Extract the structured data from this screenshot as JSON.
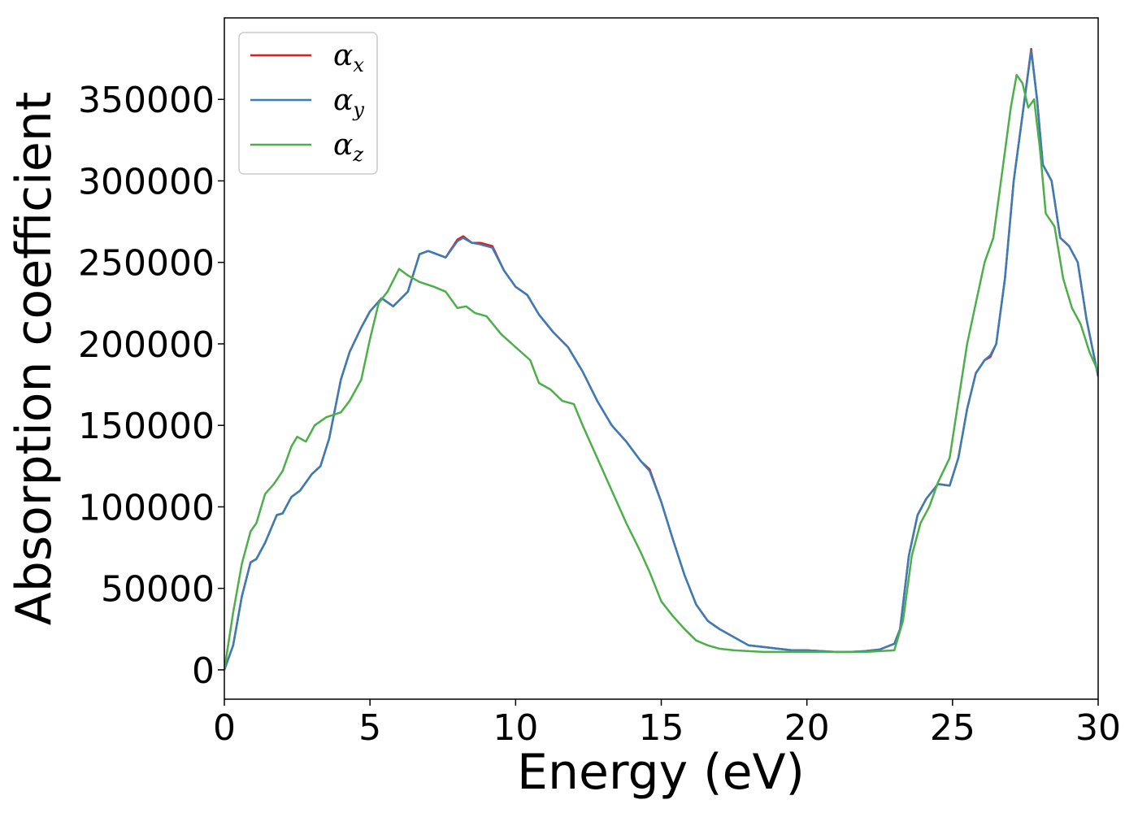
{
  "chart_data": {
    "type": "line",
    "xlabel": "Energy (eV)",
    "ylabel": "Absorption coefficient",
    "xlim": [
      0,
      30
    ],
    "ylim": [
      -18000,
      400000
    ],
    "x_ticks": [
      0,
      5,
      10,
      15,
      20,
      25,
      30
    ],
    "y_ticks": [
      0,
      50000,
      100000,
      150000,
      200000,
      250000,
      300000,
      350000
    ],
    "grid": false,
    "legend_position": "top-left",
    "series": [
      {
        "name": "α_x",
        "legend_symbol": "α",
        "legend_sub": "x",
        "color": "#e41a1c",
        "x": [
          0,
          0.3,
          0.6,
          0.9,
          1.1,
          1.4,
          1.8,
          2.0,
          2.3,
          2.6,
          3.0,
          3.3,
          3.6,
          4.0,
          4.3,
          4.7,
          5.0,
          5.4,
          5.8,
          6.3,
          6.7,
          7.0,
          7.3,
          7.6,
          8.0,
          8.2,
          8.5,
          8.8,
          9.2,
          9.6,
          10.0,
          10.4,
          10.8,
          11.3,
          11.8,
          12.3,
          12.8,
          13.3,
          13.8,
          14.3,
          14.6,
          15.0,
          15.4,
          15.8,
          16.2,
          16.6,
          17.0,
          17.5,
          18.0,
          18.5,
          19.0,
          19.5,
          20.0,
          20.5,
          21.0,
          21.5,
          22.0,
          22.5,
          23.0,
          23.2,
          23.5,
          23.8,
          24.1,
          24.5,
          24.9,
          25.2,
          25.5,
          25.8,
          26.1,
          26.3,
          26.5,
          26.8,
          27.1,
          27.4,
          27.7,
          27.9,
          28.1,
          28.4,
          28.7,
          29.0,
          29.3,
          29.6,
          30.0
        ],
        "values": [
          0,
          15000,
          45000,
          66000,
          68000,
          78000,
          95000,
          96000,
          106000,
          110000,
          120000,
          125000,
          142000,
          178000,
          195000,
          210000,
          220000,
          228000,
          223000,
          232000,
          255000,
          257000,
          255000,
          253000,
          264000,
          266000,
          262000,
          262000,
          260000,
          245000,
          235000,
          230000,
          218000,
          207000,
          198000,
          183000,
          165000,
          150000,
          140000,
          128000,
          123000,
          103000,
          80000,
          58000,
          40000,
          30000,
          25000,
          20000,
          15000,
          14000,
          13000,
          12000,
          12000,
          11500,
          11000,
          11000,
          11500,
          12500,
          16000,
          25000,
          70000,
          95000,
          105000,
          114000,
          113000,
          130000,
          160000,
          182000,
          190000,
          192000,
          200000,
          240000,
          300000,
          340000,
          381000,
          350000,
          310000,
          300000,
          265000,
          260000,
          250000,
          215000,
          180000
        ]
      },
      {
        "name": "α_y",
        "legend_symbol": "α",
        "legend_sub": "y",
        "color": "#377eb8",
        "x": [
          0,
          0.3,
          0.6,
          0.9,
          1.1,
          1.4,
          1.8,
          2.0,
          2.3,
          2.6,
          3.0,
          3.3,
          3.6,
          4.0,
          4.3,
          4.7,
          5.0,
          5.4,
          5.8,
          6.3,
          6.7,
          7.0,
          7.3,
          7.6,
          8.0,
          8.2,
          8.5,
          8.8,
          9.2,
          9.6,
          10.0,
          10.4,
          10.8,
          11.3,
          11.8,
          12.3,
          12.8,
          13.3,
          13.8,
          14.3,
          14.6,
          15.0,
          15.4,
          15.8,
          16.2,
          16.6,
          17.0,
          17.5,
          18.0,
          18.5,
          19.0,
          19.5,
          20.0,
          20.5,
          21.0,
          21.5,
          22.0,
          22.5,
          23.0,
          23.2,
          23.5,
          23.8,
          24.1,
          24.5,
          24.9,
          25.2,
          25.5,
          25.8,
          26.1,
          26.3,
          26.5,
          26.8,
          27.1,
          27.4,
          27.7,
          27.9,
          28.1,
          28.4,
          28.7,
          29.0,
          29.3,
          29.6,
          30.0
        ],
        "values": [
          0,
          15000,
          45000,
          66000,
          68000,
          78000,
          95000,
          96000,
          106000,
          110000,
          120000,
          125000,
          142000,
          178000,
          195000,
          210000,
          220000,
          228000,
          223000,
          232000,
          255000,
          257000,
          255000,
          253000,
          263000,
          265000,
          262000,
          261000,
          259000,
          245000,
          235000,
          230000,
          218000,
          207000,
          198000,
          183000,
          165000,
          150000,
          140000,
          128000,
          122000,
          103000,
          80000,
          58000,
          40000,
          30000,
          25000,
          20000,
          15000,
          14000,
          13000,
          12000,
          12000,
          11500,
          11000,
          11000,
          11500,
          12500,
          16000,
          25000,
          70000,
          95000,
          105000,
          114000,
          113000,
          130000,
          160000,
          182000,
          190000,
          193000,
          200000,
          240000,
          300000,
          340000,
          380000,
          350000,
          310000,
          300000,
          265000,
          260000,
          250000,
          215000,
          180000
        ]
      },
      {
        "name": "α_z",
        "legend_symbol": "α",
        "legend_sub": "z",
        "color": "#4daf4a",
        "x": [
          0,
          0.3,
          0.6,
          0.9,
          1.1,
          1.4,
          1.7,
          2.0,
          2.3,
          2.5,
          2.8,
          3.1,
          3.5,
          4.0,
          4.3,
          4.7,
          5.0,
          5.3,
          5.6,
          6.0,
          6.3,
          6.7,
          7.2,
          7.6,
          8.0,
          8.3,
          8.6,
          9.0,
          9.5,
          10.0,
          10.5,
          10.8,
          11.2,
          11.6,
          12.0,
          12.3,
          12.8,
          13.3,
          13.8,
          14.3,
          14.6,
          15.0,
          15.4,
          15.8,
          16.2,
          16.6,
          17.0,
          17.5,
          18.0,
          18.5,
          19.0,
          19.5,
          20.0,
          20.5,
          21.0,
          21.5,
          22.0,
          22.5,
          23.0,
          23.3,
          23.6,
          23.9,
          24.2,
          24.5,
          24.9,
          25.2,
          25.5,
          25.8,
          26.1,
          26.4,
          26.7,
          27.0,
          27.2,
          27.4,
          27.6,
          27.8,
          28.0,
          28.2,
          28.5,
          28.8,
          29.1,
          29.4,
          29.7,
          30.0
        ],
        "values": [
          0,
          35000,
          65000,
          85000,
          90000,
          108000,
          114000,
          122000,
          137000,
          143000,
          140000,
          150000,
          155000,
          158000,
          165000,
          178000,
          203000,
          225000,
          232000,
          246000,
          242000,
          238000,
          235000,
          232000,
          222000,
          223000,
          219000,
          217000,
          206000,
          198000,
          190000,
          176000,
          172000,
          165000,
          163000,
          150000,
          130000,
          110000,
          90000,
          72000,
          60000,
          42000,
          33000,
          25000,
          18000,
          15000,
          13000,
          12000,
          11500,
          11000,
          11000,
          11000,
          11000,
          11000,
          11000,
          11000,
          11000,
          11500,
          12000,
          30000,
          70000,
          90000,
          100000,
          115000,
          130000,
          165000,
          200000,
          225000,
          250000,
          265000,
          305000,
          345000,
          365000,
          360000,
          345000,
          350000,
          320000,
          280000,
          272000,
          240000,
          222000,
          212000,
          195000,
          183000
        ]
      }
    ]
  }
}
